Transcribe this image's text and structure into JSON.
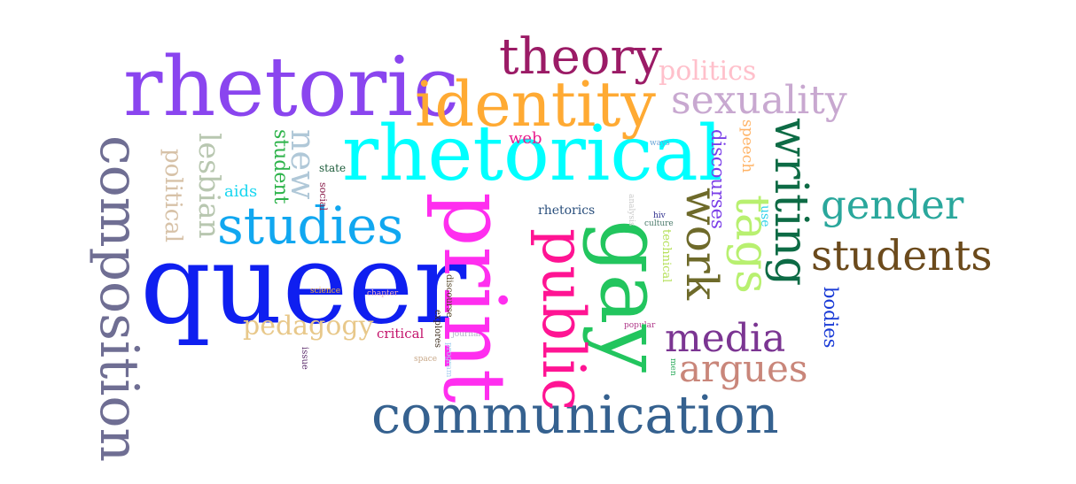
{
  "words": [
    {
      "name": "word-queer",
      "text": "queer",
      "color": "#0f1ff0"
    },
    {
      "name": "word-rhetorical",
      "text": "rhetorical",
      "color": "#00ffff"
    },
    {
      "name": "word-rhetoric",
      "text": "rhetoric",
      "color": "#8a45ef"
    },
    {
      "name": "word-print",
      "text": "print",
      "color": "#ff2eef"
    },
    {
      "name": "word-identity",
      "text": "identity",
      "color": "#ffaa33"
    },
    {
      "name": "word-gay",
      "text": "gay",
      "color": "#22c55e"
    },
    {
      "name": "word-communication",
      "text": "communication",
      "color": "#35618f"
    },
    {
      "name": "word-studies",
      "text": "studies",
      "color": "#11a7f0"
    },
    {
      "name": "word-composition",
      "text": "composition",
      "color": "#6f6e93"
    },
    {
      "name": "word-public",
      "text": "public",
      "color": "#ff1493"
    },
    {
      "name": "word-theory",
      "text": "theory",
      "color": "#9b1b66"
    },
    {
      "name": "word-writing",
      "text": "writing",
      "color": "#0d6b45"
    },
    {
      "name": "word-sexuality",
      "text": "sexuality",
      "color": "#c8a8d0"
    },
    {
      "name": "word-tags",
      "text": "tags",
      "color": "#b8f070"
    },
    {
      "name": "word-work",
      "text": "work",
      "color": "#6e6a2a"
    },
    {
      "name": "word-gender",
      "text": "gender",
      "color": "#2aa79c"
    },
    {
      "name": "word-students",
      "text": "students",
      "color": "#6b4a1c"
    },
    {
      "name": "word-media",
      "text": "media",
      "color": "#7b3592"
    },
    {
      "name": "word-argues",
      "text": "argues",
      "color": "#c9867a"
    },
    {
      "name": "word-politics",
      "text": "politics",
      "color": "#ffc0cb"
    },
    {
      "name": "word-lesbian",
      "text": "lesbian",
      "color": "#b8c7b0"
    },
    {
      "name": "word-new",
      "text": "new",
      "color": "#b0c8d8"
    },
    {
      "name": "word-political",
      "text": "political",
      "color": "#d7c2a8"
    },
    {
      "name": "word-pedagogy",
      "text": "pedagogy",
      "color": "#e8c88a"
    },
    {
      "name": "word-discourses",
      "text": "discourses",
      "color": "#7b3fe8"
    },
    {
      "name": "word-bodies",
      "text": "bodies",
      "color": "#1a3bd6"
    },
    {
      "name": "word-student",
      "text": "student",
      "color": "#2db34a"
    },
    {
      "name": "word-speech",
      "text": "speech",
      "color": "#ffb366"
    },
    {
      "name": "word-web",
      "text": "web",
      "color": "#e81c8c"
    },
    {
      "name": "word-aids",
      "text": "aids",
      "color": "#17d6f0"
    },
    {
      "name": "word-rhetorics",
      "text": "rhetorics",
      "color": "#2a4f7c"
    },
    {
      "name": "word-critical",
      "text": "critical",
      "color": "#c4146c"
    },
    {
      "name": "word-technical",
      "text": "technical",
      "color": "#b5e05a"
    },
    {
      "name": "word-use",
      "text": "use",
      "color": "#2ad1e8"
    },
    {
      "name": "word-state",
      "text": "state",
      "color": "#1a5a38"
    },
    {
      "name": "word-social",
      "text": "social",
      "color": "#8a1f4c"
    },
    {
      "name": "word-ways",
      "text": "ways",
      "color": "#6aa6d8"
    },
    {
      "name": "word-hiv",
      "text": "hiv",
      "color": "#2a2a8a"
    },
    {
      "name": "word-culture",
      "text": "culture",
      "color": "#4a7a6a"
    },
    {
      "name": "word-analysis",
      "text": "analysis",
      "color": "#c8c8c8"
    },
    {
      "name": "word-discourse",
      "text": "discourse",
      "color": "#4a3a1a"
    },
    {
      "name": "word-explores",
      "text": "explores",
      "color": "#3a2a1a"
    },
    {
      "name": "word-journal",
      "text": "journal",
      "color": "#b0b0c8"
    },
    {
      "name": "word-program",
      "text": "program",
      "color": "#aad0f0"
    },
    {
      "name": "word-popular",
      "text": "popular",
      "color": "#b03a8a"
    },
    {
      "name": "word-men",
      "text": "men",
      "color": "#2aaa5a"
    },
    {
      "name": "word-science",
      "text": "science",
      "color": "#f0b040"
    },
    {
      "name": "word-chapter",
      "text": "chapter",
      "color": "#f0b0c0"
    },
    {
      "name": "word-issue",
      "text": "issue",
      "color": "#5a2a6a"
    },
    {
      "name": "word-space",
      "text": "space",
      "color": "#c8a888"
    }
  ]
}
